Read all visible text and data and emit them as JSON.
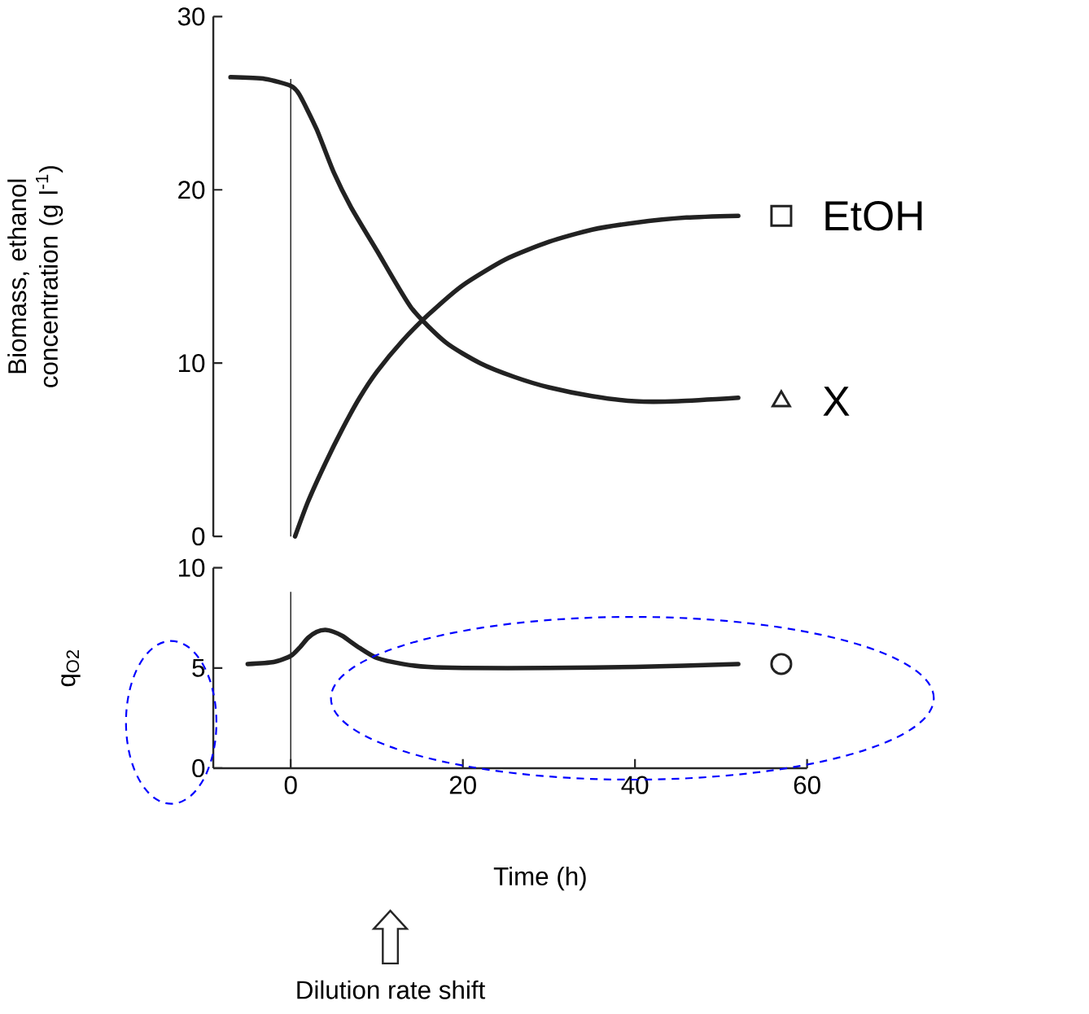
{
  "chart_data": [
    {
      "type": "line",
      "ylabel": "Biomass, ethanol concentration (g l$^{-1}$)",
      "xlim": [
        -9,
        60
      ],
      "ylim": [
        0,
        30
      ],
      "yticks": [
        0,
        10,
        20,
        30
      ],
      "tick_labels": "y",
      "ref_lines": [
        {
          "axis": "x",
          "value": 0
        }
      ],
      "series": [
        {
          "type": "line",
          "color": "#222222",
          "x": [
            -7,
            -3,
            0,
            1,
            3,
            5,
            7,
            10,
            14,
            18,
            22,
            26,
            30,
            35,
            40,
            45,
            52
          ],
          "values": [
            26.5,
            26.4,
            26,
            25.5,
            23.5,
            21,
            19,
            16.5,
            13.2,
            11.2,
            10,
            9.2,
            8.6,
            8.1,
            7.8,
            7.8,
            8
          ]
        },
        {
          "type": "line",
          "color": "#222222",
          "x": [
            0.5,
            2,
            4,
            6,
            8,
            10,
            13,
            16,
            20,
            25,
            30,
            35,
            40,
            46,
            52
          ],
          "values": [
            0,
            2,
            4.2,
            6.2,
            8,
            9.5,
            11.3,
            12.8,
            14.5,
            16,
            17,
            17.7,
            18.1,
            18.4,
            18.5
          ]
        },
        {
          "type": "scatter",
          "name": "EtOH",
          "marker": "square",
          "color": "#222222",
          "x": [
            57
          ],
          "values": [
            18.5
          ]
        },
        {
          "type": "scatter",
          "name": "X",
          "marker": "triangle",
          "color": "#222222",
          "x": [
            57
          ],
          "values": [
            7.8
          ]
        }
      ]
    },
    {
      "type": "line",
      "ylabel": "q$_{O2}$",
      "xlabel": "Time (h)",
      "xlim": [
        -9,
        60
      ],
      "ylim": [
        0,
        10
      ],
      "yticks": [
        0,
        5,
        10
      ],
      "xticks": [
        0,
        20,
        40,
        60
      ],
      "ref_lines": [
        {
          "axis": "x",
          "value": 0
        }
      ],
      "annotations": [
        "Dilution rate shift"
      ],
      "series": [
        {
          "type": "line",
          "color": "#222222",
          "x": [
            -5,
            -2,
            0,
            1,
            2,
            3,
            4,
            5,
            6,
            8,
            10,
            13,
            16,
            20,
            30,
            40,
            52
          ],
          "values": [
            5.2,
            5.3,
            5.6,
            6,
            6.5,
            6.8,
            6.9,
            6.8,
            6.6,
            6,
            5.5,
            5.2,
            5.05,
            5,
            5,
            5.05,
            5.2
          ]
        },
        {
          "type": "scatter",
          "marker": "circle",
          "color": "#222222",
          "x": [
            57
          ],
          "values": [
            5.2
          ]
        }
      ]
    }
  ]
}
